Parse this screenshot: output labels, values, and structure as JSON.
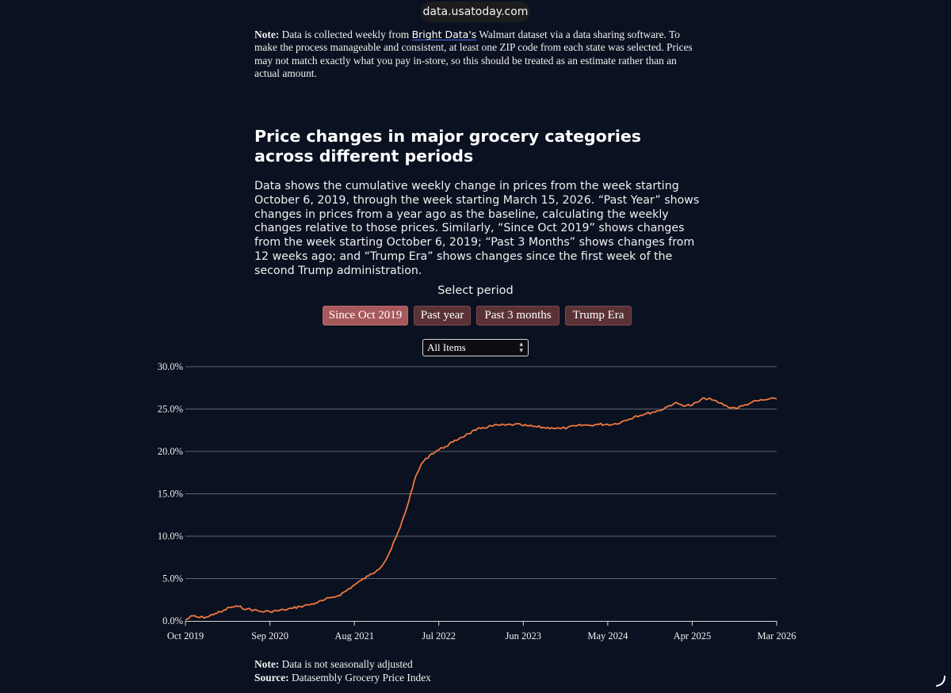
{
  "browser": {
    "url": "data.usatoday.com"
  },
  "note_top": {
    "label": "Note:",
    "text_before_link": " Data is collected weekly from ",
    "link_text": "Bright Data's",
    "text_after_link": " Walmart dataset via a data sharing software. To make the process manageable and consistent, at least one ZIP code from each state was selected. Prices may not match exactly what you pay in-store, so this should be treated as an estimate rather than an actual amount."
  },
  "heading": "Price changes in major grocery categories across different periods",
  "description": "Data shows the cumulative weekly change in prices from the week starting October 6, 2019, through the week starting March 15, 2026. “Past Year” shows changes in prices from a year ago as the baseline, calculating the weekly changes relative to those prices. Similarly, “Since Oct 2019” shows changes from the week starting October 6, 2019; “Past 3 Months” shows changes from 12 weeks ago; and “Trump Era” shows changes since the first week of the second Trump administration.",
  "period_selector": {
    "label": "Select period",
    "buttons": [
      "Since Oct 2019",
      "Past year",
      "Past 3 months",
      "Trump Era"
    ],
    "active_index": 0
  },
  "category_select": {
    "value": "All Items"
  },
  "colors": {
    "line": "#f07840",
    "grid": "#5f6675",
    "active_button": "#a6585a",
    "button": "#5a3236"
  },
  "chart_data": {
    "type": "line",
    "x_ticks": [
      "Oct 2019",
      "Sep 2020",
      "Aug 2021",
      "Jul 2022",
      "Jun 2023",
      "May 2024",
      "Apr 2025",
      "Mar 2026"
    ],
    "y_ticks": [
      "0.0%",
      "5.0%",
      "10.0%",
      "15.0%",
      "20.0%",
      "25.0%",
      "30.0%"
    ],
    "ylim": [
      0,
      30
    ],
    "xlim": [
      "2019-10-06",
      "2026-03-15"
    ],
    "grid": "horizontal",
    "series": [
      {
        "points": [
          [
            "2019-10-06",
            0.1
          ],
          [
            "2019-11-03",
            0.6
          ],
          [
            "2019-12-01",
            0.4
          ],
          [
            "2020-01-05",
            0.5
          ],
          [
            "2020-02-02",
            0.9
          ],
          [
            "2020-03-01",
            1.1
          ],
          [
            "2020-03-29",
            1.6
          ],
          [
            "2020-05-03",
            1.7
          ],
          [
            "2020-06-07",
            1.4
          ],
          [
            "2020-07-05",
            1.3
          ],
          [
            "2020-08-02",
            1.1
          ],
          [
            "2020-09-06",
            1.1
          ],
          [
            "2020-10-04",
            1.2
          ],
          [
            "2020-11-01",
            1.3
          ],
          [
            "2020-12-06",
            1.5
          ],
          [
            "2021-01-03",
            1.7
          ],
          [
            "2021-02-07",
            1.9
          ],
          [
            "2021-03-07",
            2.1
          ],
          [
            "2021-04-04",
            2.4
          ],
          [
            "2021-05-02",
            2.7
          ],
          [
            "2021-06-06",
            3.0
          ],
          [
            "2021-07-04",
            3.5
          ],
          [
            "2021-08-01",
            4.1
          ],
          [
            "2021-09-05",
            4.8
          ],
          [
            "2021-10-03",
            5.3
          ],
          [
            "2021-11-07",
            6.0
          ],
          [
            "2021-12-05",
            6.9
          ],
          [
            "2022-01-02",
            8.5
          ],
          [
            "2022-02-06",
            11.0
          ],
          [
            "2022-03-06",
            13.5
          ],
          [
            "2022-04-03",
            16.5
          ],
          [
            "2022-05-01",
            18.5
          ],
          [
            "2022-06-05",
            19.6
          ],
          [
            "2022-07-03",
            20.1
          ],
          [
            "2022-08-07",
            20.6
          ],
          [
            "2022-09-04",
            21.1
          ],
          [
            "2022-10-02",
            21.6
          ],
          [
            "2022-11-06",
            22.1
          ],
          [
            "2022-12-04",
            22.5
          ],
          [
            "2023-01-01",
            22.8
          ],
          [
            "2023-02-05",
            23.0
          ],
          [
            "2023-03-05",
            23.1
          ],
          [
            "2023-04-02",
            23.1
          ],
          [
            "2023-05-07",
            23.2
          ],
          [
            "2023-06-04",
            23.1
          ],
          [
            "2023-07-02",
            23.0
          ],
          [
            "2023-08-06",
            22.9
          ],
          [
            "2023-09-03",
            22.8
          ],
          [
            "2023-10-01",
            22.8
          ],
          [
            "2023-11-05",
            22.7
          ],
          [
            "2023-12-03",
            22.8
          ],
          [
            "2024-01-07",
            23.0
          ],
          [
            "2024-02-04",
            23.1
          ],
          [
            "2024-03-03",
            23.1
          ],
          [
            "2024-04-07",
            23.2
          ],
          [
            "2024-05-05",
            23.2
          ],
          [
            "2024-06-02",
            23.2
          ],
          [
            "2024-07-07",
            23.5
          ],
          [
            "2024-08-04",
            23.8
          ],
          [
            "2024-09-01",
            24.2
          ],
          [
            "2024-10-06",
            24.4
          ],
          [
            "2024-11-03",
            24.6
          ],
          [
            "2024-12-01",
            24.8
          ],
          [
            "2025-01-05",
            25.3
          ],
          [
            "2025-02-02",
            25.7
          ],
          [
            "2025-03-02",
            25.5
          ],
          [
            "2025-04-06",
            25.4
          ],
          [
            "2025-05-04",
            25.8
          ],
          [
            "2025-06-01",
            26.3
          ],
          [
            "2025-06-29",
            26.1
          ],
          [
            "2025-08-03",
            25.7
          ],
          [
            "2025-08-31",
            25.3
          ],
          [
            "2025-10-05",
            25.1
          ],
          [
            "2025-11-02",
            25.4
          ],
          [
            "2025-12-07",
            25.8
          ],
          [
            "2026-01-04",
            26.0
          ],
          [
            "2026-02-01",
            26.1
          ],
          [
            "2026-03-15",
            26.2
          ]
        ]
      }
    ]
  },
  "note_bottom": {
    "note_label": "Note:",
    "note_text": " Data is not seasonally adjusted",
    "source_label": "Source:",
    "source_text": " Datasembly Grocery Price Index"
  }
}
